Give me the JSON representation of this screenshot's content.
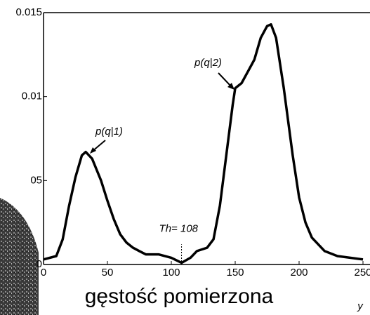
{
  "chart_data": {
    "type": "line",
    "xlabel": "gęstość pomierzona",
    "x_axis_symbol": "y",
    "x": [
      0,
      10,
      15,
      20,
      25,
      30,
      33,
      38,
      45,
      50,
      55,
      60,
      65,
      70,
      75,
      80,
      90,
      100,
      108,
      115,
      120,
      128,
      133,
      138,
      143,
      148,
      150,
      155,
      160,
      165,
      170,
      175,
      178,
      182,
      188,
      195,
      200,
      205,
      210,
      220,
      230,
      250
    ],
    "series": [
      {
        "color": "#000000",
        "values": [
          0.0003,
          0.0005,
          0.0015,
          0.0035,
          0.0052,
          0.0065,
          0.0067,
          0.0063,
          0.005,
          0.0038,
          0.0027,
          0.0018,
          0.0013,
          0.001,
          0.0008,
          0.0006,
          0.0006,
          0.0004,
          0.0001,
          0.0004,
          0.0008,
          0.001,
          0.0015,
          0.0035,
          0.0065,
          0.0095,
          0.0105,
          0.0108,
          0.0115,
          0.0122,
          0.0135,
          0.0142,
          0.0143,
          0.0135,
          0.0105,
          0.0065,
          0.004,
          0.0025,
          0.0016,
          0.0008,
          0.0005,
          0.0003
        ]
      }
    ],
    "xlim": [
      0,
      250
    ],
    "ylim": [
      0,
      0.015
    ],
    "xticks": [
      0,
      50,
      100,
      150,
      200,
      250
    ],
    "yticks": [
      0,
      {
        "value": 0.005,
        "label": "05"
      },
      0.01,
      0.015
    ],
    "threshold": 108,
    "threshold_label": "Th= 108",
    "annotations": [
      {
        "text": "p(q|1)"
      },
      {
        "text": "p(q|2)"
      }
    ]
  }
}
